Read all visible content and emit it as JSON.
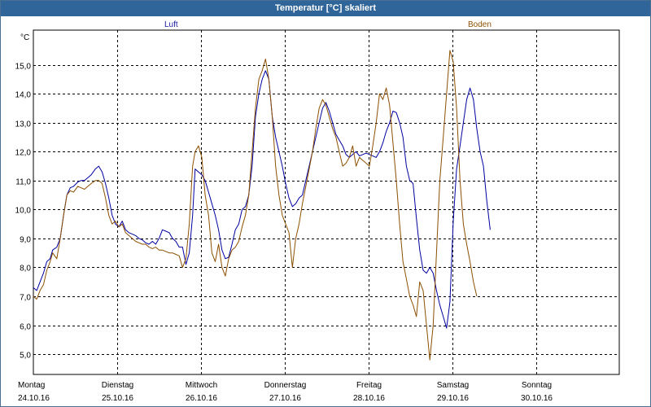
{
  "window": {
    "title": "Temperatur [°C] skaliert"
  },
  "chart_data": {
    "type": "line",
    "title": "Temperatur [°C] skaliert",
    "ylabel": "°C",
    "xlabel": "",
    "ylim": [
      4.3,
      16.2
    ],
    "xlim": [
      0,
      7
    ],
    "yticks": [
      5.0,
      6.0,
      7.0,
      8.0,
      9.0,
      10.0,
      11.0,
      12.0,
      13.0,
      14.0,
      15.0
    ],
    "ytick_labels": [
      "5,0",
      "6,0",
      "7,0",
      "8,0",
      "9,0",
      "10,0",
      "11,0",
      "12,0",
      "13,0",
      "14,0",
      "15,0"
    ],
    "x_ticks": [
      {
        "x": 0,
        "day": "Montag",
        "date": "24.10.16"
      },
      {
        "x": 1,
        "day": "Dienstag",
        "date": "25.10.16"
      },
      {
        "x": 2,
        "day": "Mittwoch",
        "date": "26.10.16"
      },
      {
        "x": 3,
        "day": "Donnerstag",
        "date": "27.10.16"
      },
      {
        "x": 4,
        "day": "Freitag",
        "date": "28.10.16"
      },
      {
        "x": 5,
        "day": "Samstag",
        "date": "29.10.16"
      },
      {
        "x": 6,
        "day": "Sonntag",
        "date": "30.10.16"
      }
    ],
    "grid": true,
    "series": [
      {
        "name": "Luft",
        "color": "#0000a0",
        "points": [
          [
            0.0,
            7.3
          ],
          [
            0.04,
            7.2
          ],
          [
            0.08,
            7.5
          ],
          [
            0.12,
            7.8
          ],
          [
            0.16,
            8.2
          ],
          [
            0.2,
            8.3
          ],
          [
            0.23,
            8.6
          ],
          [
            0.28,
            8.7
          ],
          [
            0.32,
            9.0
          ],
          [
            0.36,
            9.8
          ],
          [
            0.4,
            10.5
          ],
          [
            0.44,
            10.75
          ],
          [
            0.48,
            10.8
          ],
          [
            0.53,
            10.95
          ],
          [
            0.57,
            11.0
          ],
          [
            0.61,
            11.0
          ],
          [
            0.65,
            11.1
          ],
          [
            0.69,
            11.2
          ],
          [
            0.74,
            11.4
          ],
          [
            0.78,
            11.5
          ],
          [
            0.82,
            11.3
          ],
          [
            0.86,
            10.9
          ],
          [
            0.9,
            10.4
          ],
          [
            0.94,
            9.8
          ],
          [
            0.98,
            9.5
          ],
          [
            1.02,
            9.4
          ],
          [
            1.06,
            9.6
          ],
          [
            1.1,
            9.3
          ],
          [
            1.14,
            9.2
          ],
          [
            1.18,
            9.15
          ],
          [
            1.22,
            9.1
          ],
          [
            1.26,
            9.0
          ],
          [
            1.3,
            8.95
          ],
          [
            1.34,
            8.85
          ],
          [
            1.38,
            8.8
          ],
          [
            1.42,
            8.9
          ],
          [
            1.46,
            8.8
          ],
          [
            1.5,
            9.0
          ],
          [
            1.54,
            9.3
          ],
          [
            1.58,
            9.25
          ],
          [
            1.62,
            9.2
          ],
          [
            1.66,
            9.0
          ],
          [
            1.7,
            8.9
          ],
          [
            1.74,
            8.7
          ],
          [
            1.78,
            8.7
          ],
          [
            1.82,
            8.1
          ],
          [
            1.86,
            8.5
          ],
          [
            1.9,
            9.8
          ],
          [
            1.93,
            11.4
          ],
          [
            1.97,
            11.3
          ],
          [
            2.01,
            11.2
          ],
          [
            2.05,
            11.0
          ],
          [
            2.09,
            10.6
          ],
          [
            2.13,
            10.2
          ],
          [
            2.17,
            9.8
          ],
          [
            2.21,
            9.3
          ],
          [
            2.25,
            8.6
          ],
          [
            2.29,
            8.3
          ],
          [
            2.33,
            8.35
          ],
          [
            2.37,
            8.8
          ],
          [
            2.41,
            9.3
          ],
          [
            2.45,
            9.5
          ],
          [
            2.49,
            10.0
          ],
          [
            2.53,
            10.1
          ],
          [
            2.57,
            10.5
          ],
          [
            2.61,
            11.5
          ],
          [
            2.65,
            13.2
          ],
          [
            2.69,
            14.0
          ],
          [
            2.73,
            14.5
          ],
          [
            2.77,
            14.8
          ],
          [
            2.81,
            14.5
          ],
          [
            2.85,
            13.2
          ],
          [
            2.89,
            12.5
          ],
          [
            2.93,
            12.0
          ],
          [
            2.97,
            11.5
          ],
          [
            3.01,
            10.9
          ],
          [
            3.05,
            10.4
          ],
          [
            3.09,
            10.1
          ],
          [
            3.13,
            10.2
          ],
          [
            3.17,
            10.4
          ],
          [
            3.21,
            10.5
          ],
          [
            3.25,
            11.0
          ],
          [
            3.29,
            11.5
          ],
          [
            3.33,
            12.0
          ],
          [
            3.37,
            12.5
          ],
          [
            3.41,
            13.0
          ],
          [
            3.45,
            13.5
          ],
          [
            3.49,
            13.7
          ],
          [
            3.53,
            13.4
          ],
          [
            3.57,
            13.0
          ],
          [
            3.61,
            12.6
          ],
          [
            3.65,
            12.4
          ],
          [
            3.69,
            12.2
          ],
          [
            3.73,
            11.9
          ],
          [
            3.77,
            11.8
          ],
          [
            3.81,
            11.9
          ],
          [
            3.85,
            12.0
          ],
          [
            3.89,
            11.85
          ],
          [
            3.93,
            11.9
          ],
          [
            3.97,
            11.95
          ],
          [
            4.01,
            11.9
          ],
          [
            4.05,
            11.85
          ],
          [
            4.09,
            11.8
          ],
          [
            4.13,
            12.0
          ],
          [
            4.17,
            12.3
          ],
          [
            4.21,
            12.7
          ],
          [
            4.25,
            13.0
          ],
          [
            4.29,
            13.4
          ],
          [
            4.33,
            13.35
          ],
          [
            4.37,
            13.0
          ],
          [
            4.41,
            12.5
          ],
          [
            4.45,
            11.5
          ],
          [
            4.49,
            11.0
          ],
          [
            4.53,
            10.9
          ],
          [
            4.57,
            9.7
          ],
          [
            4.61,
            8.6
          ],
          [
            4.65,
            7.9
          ],
          [
            4.69,
            7.8
          ],
          [
            4.73,
            8.0
          ],
          [
            4.77,
            7.8
          ],
          [
            4.81,
            7.2
          ],
          [
            4.85,
            6.7
          ],
          [
            4.89,
            6.3
          ],
          [
            4.93,
            5.9
          ],
          [
            4.97,
            6.8
          ],
          [
            5.01,
            9.6
          ],
          [
            5.05,
            11.4
          ],
          [
            5.09,
            12.2
          ],
          [
            5.13,
            13.0
          ],
          [
            5.17,
            13.8
          ],
          [
            5.21,
            14.2
          ],
          [
            5.25,
            13.8
          ],
          [
            5.29,
            12.8
          ],
          [
            5.33,
            12.0
          ],
          [
            5.37,
            11.5
          ],
          [
            5.41,
            10.3
          ],
          [
            5.45,
            9.3
          ]
        ]
      },
      {
        "name": "Boden",
        "color": "#8c5000",
        "points": [
          [
            0.0,
            7.0
          ],
          [
            0.04,
            6.9
          ],
          [
            0.08,
            7.2
          ],
          [
            0.12,
            7.4
          ],
          [
            0.16,
            7.9
          ],
          [
            0.2,
            8.2
          ],
          [
            0.23,
            8.5
          ],
          [
            0.28,
            8.3
          ],
          [
            0.32,
            9.0
          ],
          [
            0.36,
            9.8
          ],
          [
            0.4,
            10.5
          ],
          [
            0.44,
            10.65
          ],
          [
            0.48,
            10.6
          ],
          [
            0.53,
            10.8
          ],
          [
            0.57,
            10.75
          ],
          [
            0.61,
            10.7
          ],
          [
            0.65,
            10.8
          ],
          [
            0.69,
            10.9
          ],
          [
            0.74,
            11.0
          ],
          [
            0.78,
            11.0
          ],
          [
            0.82,
            10.9
          ],
          [
            0.86,
            10.4
          ],
          [
            0.9,
            9.8
          ],
          [
            0.94,
            9.5
          ],
          [
            0.98,
            9.6
          ],
          [
            1.02,
            9.4
          ],
          [
            1.06,
            9.5
          ],
          [
            1.1,
            9.2
          ],
          [
            1.14,
            9.1
          ],
          [
            1.18,
            9.0
          ],
          [
            1.22,
            8.9
          ],
          [
            1.26,
            8.85
          ],
          [
            1.3,
            8.8
          ],
          [
            1.34,
            8.8
          ],
          [
            1.38,
            8.7
          ],
          [
            1.42,
            8.65
          ],
          [
            1.46,
            8.7
          ],
          [
            1.5,
            8.6
          ],
          [
            1.54,
            8.6
          ],
          [
            1.58,
            8.55
          ],
          [
            1.62,
            8.5
          ],
          [
            1.66,
            8.5
          ],
          [
            1.7,
            8.45
          ],
          [
            1.74,
            8.4
          ],
          [
            1.78,
            8.0
          ],
          [
            1.82,
            8.3
          ],
          [
            1.86,
            9.5
          ],
          [
            1.9,
            11.5
          ],
          [
            1.93,
            12.0
          ],
          [
            1.97,
            12.2
          ],
          [
            2.01,
            11.8
          ],
          [
            2.05,
            10.5
          ],
          [
            2.09,
            9.8
          ],
          [
            2.13,
            8.5
          ],
          [
            2.17,
            8.2
          ],
          [
            2.21,
            8.8
          ],
          [
            2.25,
            8.0
          ],
          [
            2.29,
            7.7
          ],
          [
            2.33,
            8.3
          ],
          [
            2.37,
            8.6
          ],
          [
            2.41,
            8.7
          ],
          [
            2.45,
            8.9
          ],
          [
            2.49,
            9.4
          ],
          [
            2.53,
            9.8
          ],
          [
            2.57,
            10.5
          ],
          [
            2.61,
            12.0
          ],
          [
            2.65,
            13.5
          ],
          [
            2.69,
            14.5
          ],
          [
            2.73,
            14.8
          ],
          [
            2.77,
            15.2
          ],
          [
            2.81,
            14.5
          ],
          [
            2.85,
            13.2
          ],
          [
            2.89,
            11.5
          ],
          [
            2.93,
            10.5
          ],
          [
            2.97,
            9.8
          ],
          [
            3.01,
            9.5
          ],
          [
            3.05,
            9.2
          ],
          [
            3.09,
            8.0
          ],
          [
            3.13,
            9.0
          ],
          [
            3.17,
            9.5
          ],
          [
            3.21,
            10.2
          ],
          [
            3.25,
            10.8
          ],
          [
            3.29,
            11.4
          ],
          [
            3.33,
            12.0
          ],
          [
            3.37,
            12.8
          ],
          [
            3.41,
            13.5
          ],
          [
            3.45,
            13.8
          ],
          [
            3.49,
            13.6
          ],
          [
            3.53,
            13.2
          ],
          [
            3.57,
            12.8
          ],
          [
            3.61,
            12.5
          ],
          [
            3.65,
            12.0
          ],
          [
            3.69,
            11.5
          ],
          [
            3.73,
            11.6
          ],
          [
            3.77,
            11.8
          ],
          [
            3.81,
            12.2
          ],
          [
            3.85,
            11.5
          ],
          [
            3.89,
            11.8
          ],
          [
            3.93,
            11.7
          ],
          [
            3.97,
            11.6
          ],
          [
            4.01,
            11.5
          ],
          [
            4.05,
            12.2
          ],
          [
            4.09,
            13.0
          ],
          [
            4.13,
            14.0
          ],
          [
            4.17,
            13.8
          ],
          [
            4.21,
            14.2
          ],
          [
            4.25,
            13.6
          ],
          [
            4.29,
            12.3
          ],
          [
            4.33,
            11.0
          ],
          [
            4.37,
            9.5
          ],
          [
            4.41,
            8.2
          ],
          [
            4.45,
            7.6
          ],
          [
            4.49,
            7.0
          ],
          [
            4.53,
            6.7
          ],
          [
            4.57,
            6.3
          ],
          [
            4.61,
            7.5
          ],
          [
            4.65,
            7.2
          ],
          [
            4.69,
            6.0
          ],
          [
            4.73,
            4.8
          ],
          [
            4.77,
            6.0
          ],
          [
            4.81,
            8.5
          ],
          [
            4.85,
            11.0
          ],
          [
            4.89,
            12.5
          ],
          [
            4.93,
            14.0
          ],
          [
            4.97,
            15.5
          ],
          [
            5.01,
            15.1
          ],
          [
            5.05,
            13.5
          ],
          [
            5.09,
            11.0
          ],
          [
            5.13,
            9.5
          ],
          [
            5.17,
            8.8
          ],
          [
            5.21,
            8.2
          ],
          [
            5.25,
            7.5
          ],
          [
            5.29,
            7.0
          ]
        ]
      }
    ]
  }
}
